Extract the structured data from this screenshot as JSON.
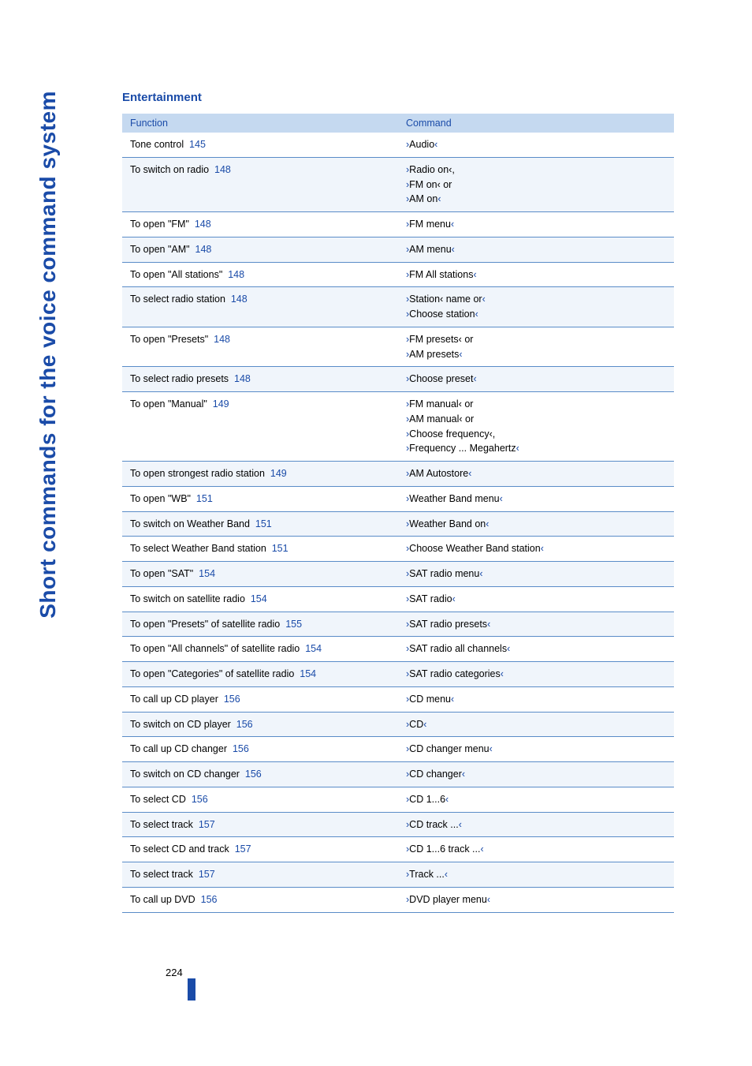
{
  "sideTitle": "Short commands for the voice command system",
  "sectionHeading": "Entertainment",
  "tableHeader": {
    "col1": "Function",
    "col2": "Command"
  },
  "rows": [
    {
      "func": "Tone control",
      "ref": "145",
      "cmds": [
        "Audio"
      ]
    },
    {
      "func": "To switch on radio",
      "ref": "148",
      "cmds": [
        "Radio on‹,",
        "FM on‹ or",
        "AM on"
      ]
    },
    {
      "func": "To open \"FM\"",
      "ref": "148",
      "cmds": [
        "FM menu"
      ]
    },
    {
      "func": "To open \"AM\"",
      "ref": "148",
      "cmds": [
        "AM menu"
      ]
    },
    {
      "func": "To open \"All stations\"",
      "ref": "148",
      "cmds": [
        "FM All stations"
      ]
    },
    {
      "func": "To select radio station",
      "ref": "148",
      "cmds": [
        "Station‹ name or",
        "Choose station"
      ]
    },
    {
      "func": "To open \"Presets\"",
      "ref": "148",
      "cmds": [
        "FM presets‹ or",
        "AM presets"
      ]
    },
    {
      "func": "To select radio presets",
      "ref": "148",
      "cmds": [
        "Choose preset"
      ]
    },
    {
      "func": "To open \"Manual\"",
      "ref": "149",
      "cmds": [
        "FM manual‹ or",
        "AM manual‹ or",
        "Choose frequency‹,",
        "Frequency ... Megahertz"
      ]
    },
    {
      "func": "To open strongest radio station",
      "ref": "149",
      "cmds": [
        "AM Autostore"
      ]
    },
    {
      "func": "To open \"WB\"",
      "ref": "151",
      "cmds": [
        "Weather Band menu"
      ]
    },
    {
      "func": "To switch on Weather Band",
      "ref": "151",
      "cmds": [
        "Weather Band on"
      ]
    },
    {
      "func": "To select Weather Band station",
      "ref": "151",
      "cmds": [
        "Choose Weather Band station"
      ]
    },
    {
      "func": "To open \"SAT\"",
      "ref": "154",
      "cmds": [
        "SAT radio menu"
      ]
    },
    {
      "func": "To switch on satellite radio",
      "ref": "154",
      "cmds": [
        "SAT radio"
      ]
    },
    {
      "func": "To open \"Presets\" of satellite radio",
      "ref": "155",
      "cmds": [
        "SAT radio presets"
      ]
    },
    {
      "func": "To open \"All channels\" of satellite radio",
      "ref": "154",
      "cmds": [
        "SAT radio all channels"
      ]
    },
    {
      "func": "To open \"Categories\" of satellite radio",
      "ref": "154",
      "cmds": [
        "SAT radio categories"
      ]
    },
    {
      "func": "To call up CD player",
      "ref": "156",
      "cmds": [
        "CD menu"
      ]
    },
    {
      "func": "To switch on CD player",
      "ref": "156",
      "cmds": [
        "CD"
      ]
    },
    {
      "func": "To call up CD changer",
      "ref": "156",
      "cmds": [
        "CD changer menu"
      ]
    },
    {
      "func": "To switch on CD changer",
      "ref": "156",
      "cmds": [
        "CD changer"
      ]
    },
    {
      "func": "To select CD",
      "ref": "156",
      "cmds": [
        "CD 1...6"
      ]
    },
    {
      "func": "To select track",
      "ref": "157",
      "cmds": [
        "CD track ..."
      ]
    },
    {
      "func": "To select CD and track",
      "ref": "157",
      "cmds": [
        "CD 1...6 track ..."
      ]
    },
    {
      "func": "To select track",
      "ref": "157",
      "cmds": [
        "Track ..."
      ]
    },
    {
      "func": "To call up DVD",
      "ref": "156",
      "cmds": [
        "DVD player menu"
      ]
    }
  ],
  "pageNumber": "224",
  "styling": {
    "accentColor": "#1a4ba8",
    "headerBg": "#c5d9f0",
    "evenRowBg": "#f0f5fb",
    "borderColor": "#5a8cc8",
    "bodyFontSize": 12.5,
    "sideTitleFontSize": 28
  }
}
